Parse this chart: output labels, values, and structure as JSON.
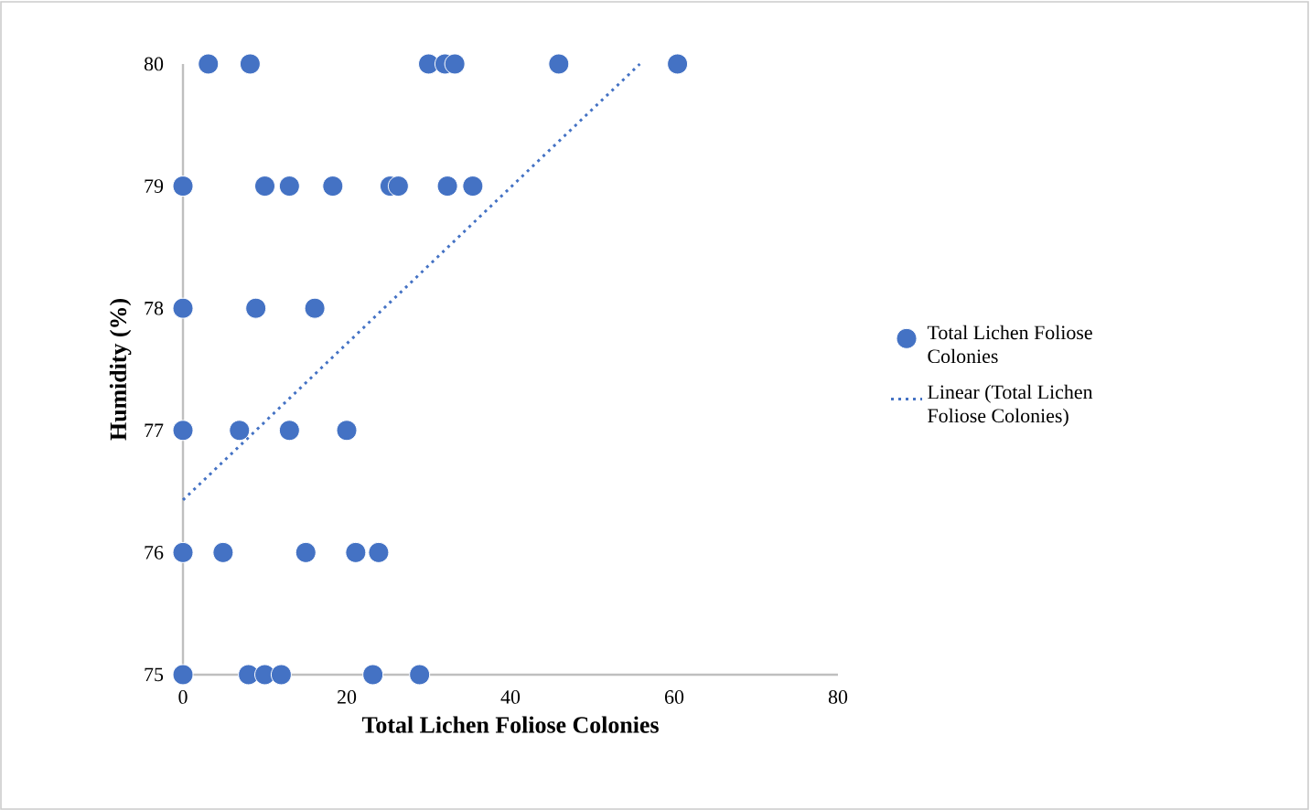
{
  "chart_data": {
    "type": "scatter",
    "xlabel": "Total Lichen Foliose Colonies",
    "ylabel": "Humidity  (%)",
    "xlim": [
      0,
      80
    ],
    "ylim": [
      75,
      80
    ],
    "xticks": [
      0,
      20,
      40,
      60,
      80
    ],
    "yticks": [
      75,
      76,
      77,
      78,
      79,
      80
    ],
    "legend": "right",
    "grid": false,
    "marker": "circle",
    "series": [
      {
        "name": "Total Lichen Foliose Colonies",
        "color": "#4472c4",
        "x": [
          3.1,
          8.2,
          30,
          32,
          33.2,
          45.9,
          60.4,
          0,
          10,
          13,
          18.3,
          25.3,
          26.3,
          32.3,
          35.4,
          0,
          8.9,
          16.1,
          0,
          6.9,
          13,
          20,
          0,
          4.9,
          15,
          21.1,
          23.9,
          0,
          8,
          10,
          12,
          23.2,
          28.9
        ],
        "values": [
          80,
          80,
          80,
          80,
          80,
          80,
          80,
          79,
          79,
          79,
          79,
          79,
          79,
          79,
          79,
          78,
          78,
          78,
          77,
          77,
          77,
          77,
          76,
          76,
          76,
          76,
          76,
          75,
          75,
          75,
          75,
          75,
          75
        ]
      },
      {
        "name": "Linear (Total Lichen Foliose Colonies)",
        "type": "line",
        "line_style": "dotted",
        "marker": "none",
        "color": "#4472c4",
        "x": [
          0,
          55.8
        ],
        "values": [
          76.43,
          80
        ]
      }
    ]
  }
}
